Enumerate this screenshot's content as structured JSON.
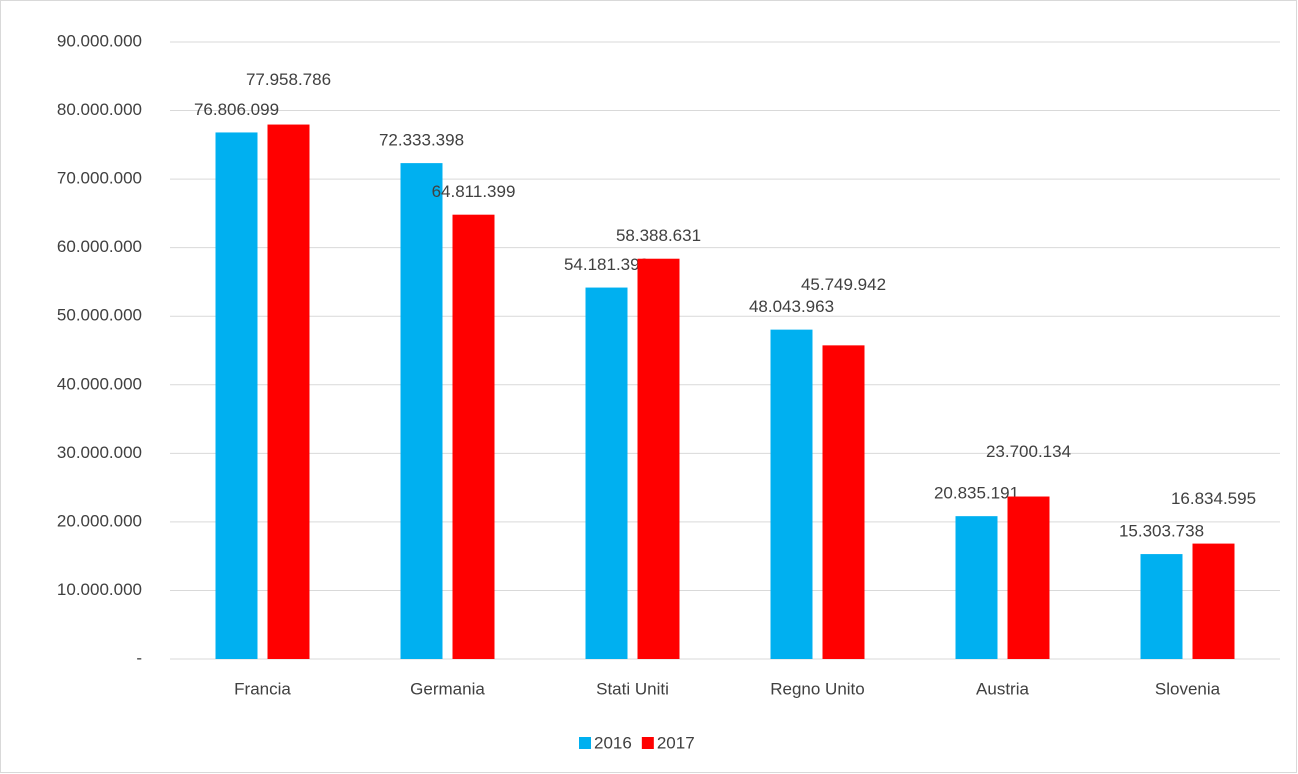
{
  "chart_data": {
    "type": "bar",
    "categories": [
      "Francia",
      "Germania",
      "Stati Uniti",
      "Regno Unito",
      "Austria",
      "Slovenia"
    ],
    "series": [
      {
        "name": "2016",
        "color": "#00b0f0",
        "values": [
          76806099,
          72333398,
          54181399,
          48043963,
          20835191,
          15303738
        ],
        "value_labels": [
          "76.806.099",
          "72.333.398",
          "54.181.399",
          "48.043.963",
          "20.835.191",
          "15.303.738"
        ]
      },
      {
        "name": "2017",
        "color": "#ff0000",
        "values": [
          77958786,
          64811399,
          58388631,
          45749942,
          23700134,
          16834595
        ],
        "value_labels": [
          "77.958.786",
          "64.811.399",
          "58.388.631",
          "45.749.942",
          "23.700.134",
          "16.834.595"
        ]
      }
    ],
    "ylim": [
      0,
      90000000
    ],
    "yticks": [
      {
        "value": 0,
        "label": "-"
      },
      {
        "value": 10000000,
        "label": "10.000.000"
      },
      {
        "value": 20000000,
        "label": "20.000.000"
      },
      {
        "value": 30000000,
        "label": "30.000.000"
      },
      {
        "value": 40000000,
        "label": "40.000.000"
      },
      {
        "value": 50000000,
        "label": "50.000.000"
      },
      {
        "value": 60000000,
        "label": "60.000.000"
      },
      {
        "value": 70000000,
        "label": "70.000.000"
      },
      {
        "value": 80000000,
        "label": "80.000.000"
      },
      {
        "value": 90000000,
        "label": "90.000.000"
      }
    ],
    "grid": true,
    "legend": "bottom"
  }
}
